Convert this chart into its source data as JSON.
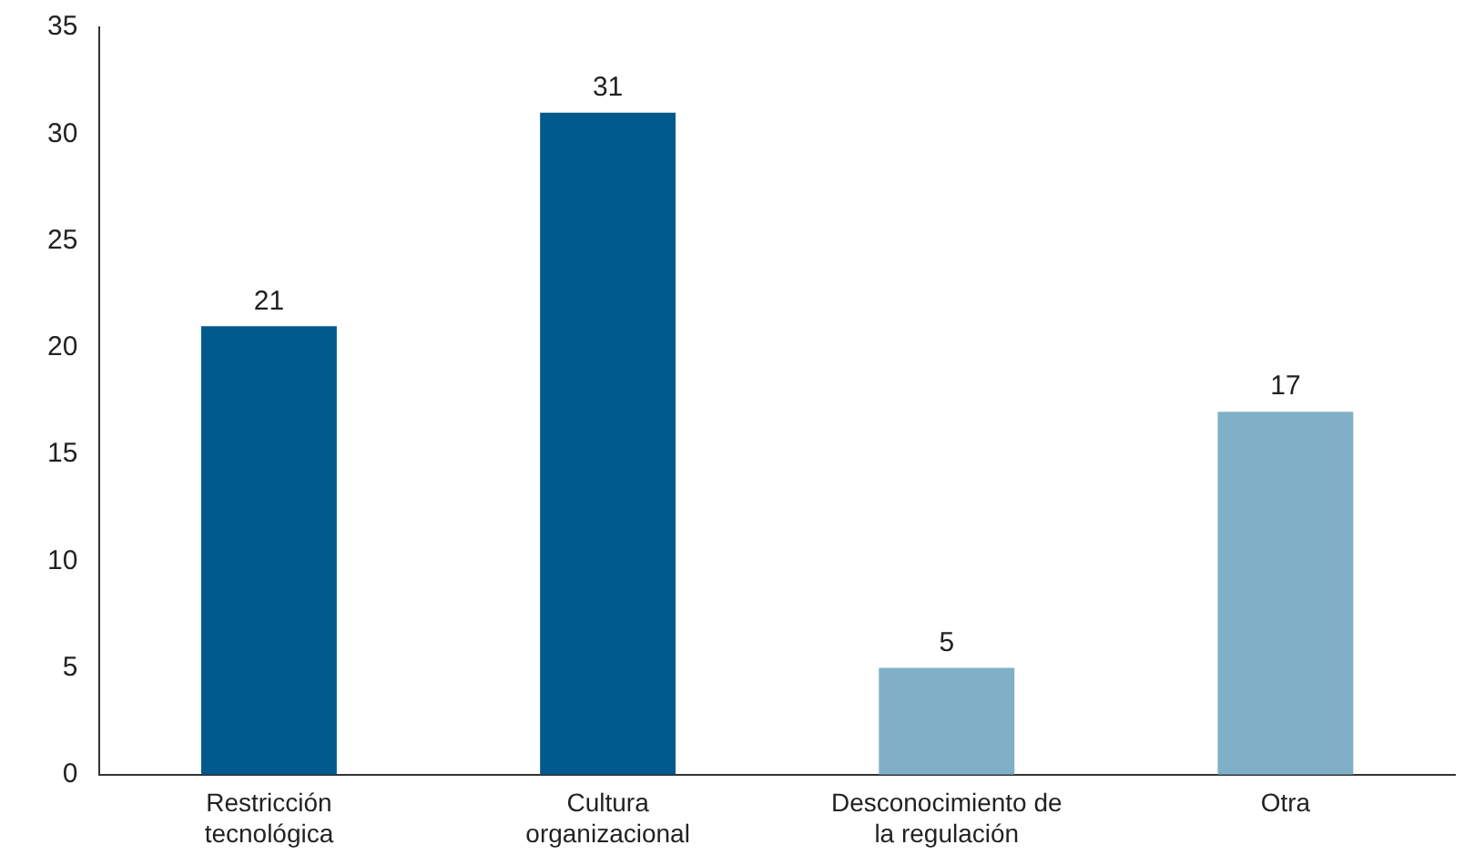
{
  "chart_data": {
    "type": "bar",
    "categories": [
      "Restricción tecnológica",
      "Cultura organizacional",
      "Desconocimiento de la regulación",
      "Otra"
    ],
    "values": [
      21,
      31,
      5,
      17
    ],
    "colors": [
      "#005b8c",
      "#005b8c",
      "#7fb0c8",
      "#7fb0c8"
    ],
    "ylim": [
      0,
      35
    ],
    "yticks": [
      0,
      5,
      10,
      15,
      20,
      25,
      30,
      35
    ],
    "data_labels": true,
    "grid": false,
    "legend": false
  }
}
